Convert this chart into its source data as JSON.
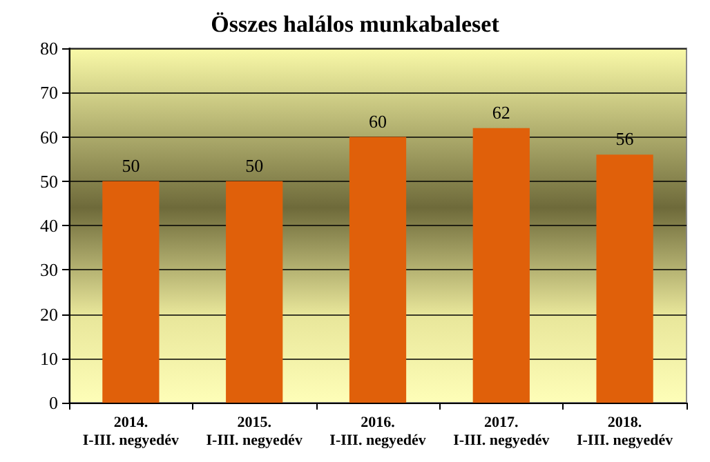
{
  "chart_data": {
    "type": "bar",
    "title": "Összes halálos munkabaleset",
    "categories": [
      "2014.\nI-III. negyedév",
      "2015.\nI-III. negyedév",
      "2016.\nI-III. negyedév",
      "2017.\nI-III. negyedév",
      "2018.\nI-III. negyedév"
    ],
    "values": [
      50,
      50,
      60,
      62,
      56
    ],
    "color": "#e0600a",
    "ylim": [
      0,
      80
    ],
    "yticks": [
      0,
      10,
      20,
      30,
      40,
      50,
      60,
      70,
      80
    ],
    "grid": "y",
    "data_labels": true
  }
}
